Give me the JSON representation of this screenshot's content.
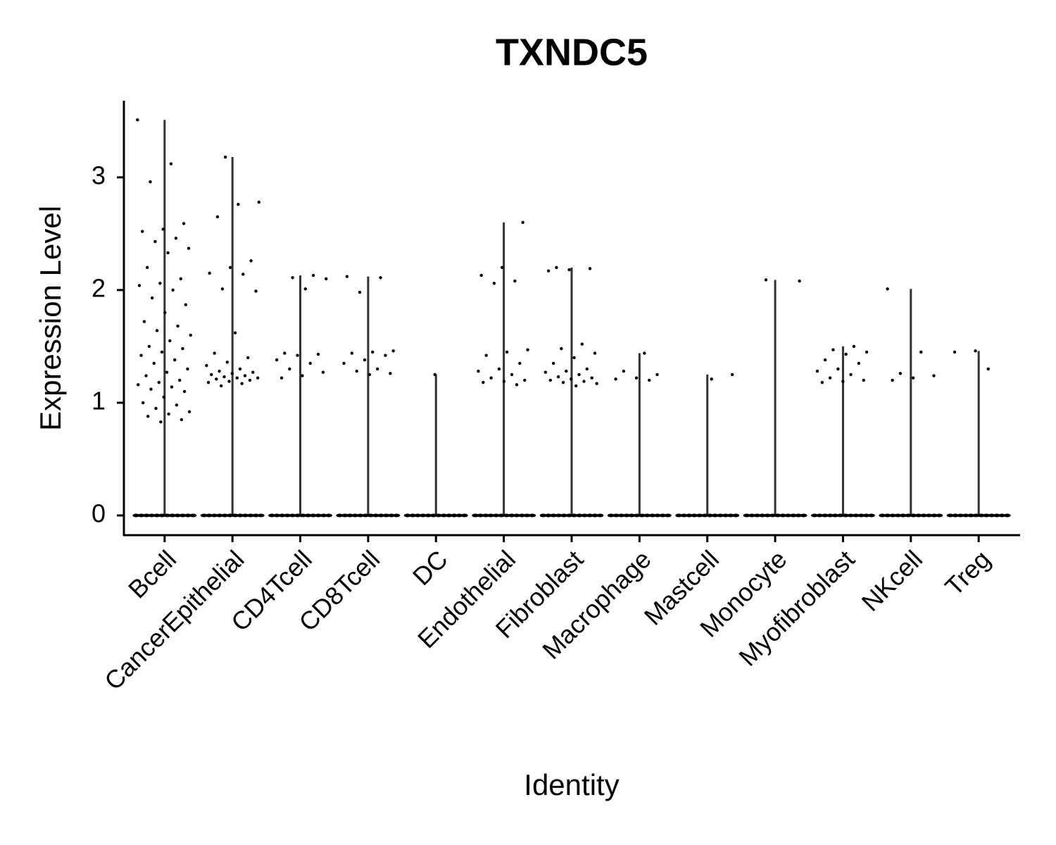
{
  "chart_data": {
    "type": "violin",
    "title": "TXNDC5",
    "x_label": "Identity",
    "y_label": "Expression Level",
    "categories": [
      "Bcell",
      "CancerEpithelial",
      "CD4Tcell",
      "CD8Tcell",
      "DC",
      "Endothelial",
      "Fibroblast",
      "Macrophage",
      "Mastcell",
      "Monocyte",
      "Myofibroblast",
      "NKcell",
      "Treg"
    ],
    "values": [
      3.51,
      3.18,
      2.13,
      2.12,
      1.25,
      2.6,
      2.2,
      1.44,
      1.25,
      2.09,
      1.5,
      2.01,
      1.46
    ],
    "points": [
      [
        3.51,
        3.12,
        2.96,
        2.59,
        2.54,
        2.52,
        2.46,
        2.43,
        2.37,
        2.33,
        2.2,
        2.1,
        2.06,
        2.04,
        2.0,
        1.93,
        1.87,
        1.8,
        1.72,
        1.68,
        1.64,
        1.6,
        1.55,
        1.5,
        1.48,
        1.45,
        1.42,
        1.38,
        1.35,
        1.3,
        1.27,
        1.24,
        1.2,
        1.18,
        1.16,
        1.14,
        1.12,
        1.1,
        1.05,
        1.0,
        0.98,
        0.95,
        0.92,
        0.9,
        0.88,
        0.85,
        0.83,
        0,
        0,
        0,
        0,
        0,
        0,
        0,
        0,
        0,
        0,
        0,
        0
      ],
      [
        3.18,
        2.78,
        2.76,
        2.65,
        2.26,
        2.2,
        2.15,
        2.14,
        2.01,
        1.99,
        1.62,
        1.44,
        1.4,
        1.36,
        1.33,
        1.3,
        1.28,
        1.27,
        1.26,
        1.25,
        1.24,
        1.23,
        1.22,
        1.22,
        1.21,
        1.2,
        1.19,
        1.18,
        1.17,
        1.15,
        0,
        0,
        0,
        0,
        0,
        0,
        0,
        0,
        0,
        0,
        0,
        0
      ],
      [
        2.13,
        2.11,
        2.1,
        2.01,
        1.44,
        1.43,
        1.42,
        1.38,
        1.35,
        1.3,
        1.27,
        1.24,
        1.22,
        0,
        0,
        0,
        0,
        0,
        0,
        0,
        0,
        0,
        0,
        0,
        0
      ],
      [
        2.12,
        2.11,
        1.98,
        1.46,
        1.45,
        1.44,
        1.42,
        1.38,
        1.35,
        1.3,
        1.28,
        1.26,
        1.25,
        0,
        0,
        0,
        0,
        0,
        0,
        0,
        0,
        0,
        0,
        0,
        0
      ],
      [
        1.25,
        0,
        0,
        0,
        0,
        0,
        0,
        0,
        0,
        0,
        0,
        0,
        0
      ],
      [
        2.6,
        2.2,
        2.13,
        2.08,
        2.06,
        1.47,
        1.45,
        1.42,
        1.35,
        1.3,
        1.28,
        1.25,
        1.22,
        1.2,
        1.19,
        1.18,
        1.16,
        0,
        0,
        0,
        0,
        0,
        0,
        0,
        0,
        0,
        0,
        0,
        0
      ],
      [
        2.2,
        2.19,
        2.18,
        2.17,
        1.52,
        1.48,
        1.44,
        1.4,
        1.35,
        1.3,
        1.28,
        1.27,
        1.25,
        1.23,
        1.22,
        1.21,
        1.2,
        1.19,
        1.18,
        1.17,
        1.15,
        0,
        0,
        0,
        0,
        0,
        0,
        0,
        0,
        0,
        0,
        0,
        0
      ],
      [
        1.44,
        1.28,
        1.25,
        1.22,
        1.21,
        1.2,
        0,
        0,
        0,
        0,
        0,
        0,
        0,
        0,
        0,
        0,
        0,
        0
      ],
      [
        1.25,
        1.21,
        0,
        0,
        0,
        0,
        0,
        0,
        0,
        0,
        0,
        0,
        0,
        0
      ],
      [
        2.09,
        2.08,
        0,
        0,
        0,
        0,
        0,
        0,
        0,
        0,
        0,
        0,
        0,
        0
      ],
      [
        1.5,
        1.47,
        1.45,
        1.43,
        1.38,
        1.35,
        1.3,
        1.28,
        1.25,
        1.22,
        1.2,
        1.19,
        1.18,
        0,
        0,
        0,
        0,
        0,
        0,
        0,
        0,
        0,
        0,
        0,
        0
      ],
      [
        2.01,
        1.45,
        1.26,
        1.24,
        1.22,
        1.2,
        0,
        0,
        0,
        0,
        0,
        0,
        0,
        0,
        0,
        0,
        0,
        0
      ],
      [
        1.46,
        1.45,
        1.3,
        0,
        0,
        0,
        0,
        0,
        0,
        0,
        0,
        0,
        0,
        0,
        0
      ]
    ],
    "color": "#333333",
    "point_color": "#000000",
    "ylim": [
      -0.175,
      3.68
    ],
    "yticks": [
      0,
      1,
      2,
      3
    ]
  }
}
